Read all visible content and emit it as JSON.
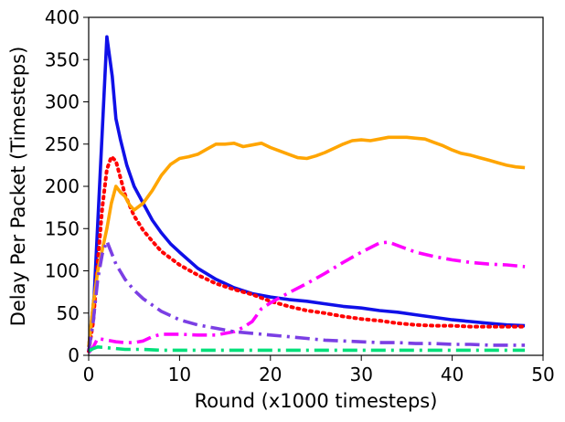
{
  "chart_data": {
    "type": "line",
    "title": "",
    "xlabel": "Round (x1000 timesteps)",
    "ylabel": "Delay Per Packet (Timesteps)",
    "xlim": [
      0,
      50
    ],
    "ylim": [
      0,
      400
    ],
    "xticks": [
      0,
      10,
      20,
      30,
      40,
      50
    ],
    "yticks": [
      0,
      50,
      100,
      150,
      200,
      250,
      300,
      350,
      400
    ],
    "xtick_labels": [
      "0",
      "10",
      "20",
      "30",
      "40",
      "50"
    ],
    "ytick_labels": [
      "0",
      "50",
      "100",
      "150",
      "200",
      "250",
      "300",
      "350",
      "400"
    ],
    "grid": false,
    "legend": "none",
    "series": [
      {
        "color": "#1010e8",
        "style": "solid",
        "x": [
          0,
          0.6,
          1.2,
          2,
          2.6,
          3,
          3.5,
          4.2,
          5,
          6,
          7,
          8,
          9,
          10,
          12,
          14,
          16,
          18,
          20,
          22,
          24,
          26,
          28,
          30,
          32,
          34,
          36,
          38,
          40,
          42,
          44,
          46,
          48
        ],
        "y": [
          10,
          70,
          200,
          377,
          330,
          280,
          255,
          225,
          200,
          180,
          160,
          145,
          132,
          122,
          103,
          90,
          80,
          73,
          69,
          66,
          64,
          61,
          58,
          56,
          53,
          51,
          48,
          45,
          42,
          40,
          38,
          36,
          35
        ]
      },
      {
        "color": "#ff0000",
        "style": "dotted",
        "x": [
          0,
          0.5,
          1,
          1.5,
          2,
          2.5,
          3,
          3.5,
          4,
          5,
          6,
          7,
          8,
          10,
          12,
          14,
          16,
          18,
          20,
          22,
          24,
          26,
          28,
          30,
          32,
          34,
          36,
          38,
          40,
          42,
          44,
          46,
          48
        ],
        "y": [
          5,
          40,
          110,
          175,
          220,
          235,
          230,
          210,
          190,
          165,
          148,
          135,
          123,
          107,
          95,
          85,
          78,
          72,
          64,
          58,
          53,
          50,
          46,
          43,
          41,
          38,
          36,
          35,
          35,
          34,
          34,
          34,
          34
        ]
      },
      {
        "color": "#ffa500",
        "style": "solid",
        "x": [
          0,
          0.5,
          1,
          2,
          2.5,
          3,
          3.5,
          4,
          4.5,
          5,
          6,
          7,
          8,
          9,
          10,
          11,
          12,
          13,
          14,
          15,
          16,
          17,
          18,
          19,
          20,
          21,
          22,
          23,
          24,
          25,
          26,
          27,
          28,
          29,
          30,
          31,
          32,
          33,
          34,
          35,
          36,
          37,
          38,
          39,
          40,
          41,
          42,
          43,
          44,
          45,
          46,
          47,
          48
        ],
        "y": [
          10,
          60,
          100,
          150,
          180,
          200,
          193,
          188,
          178,
          172,
          180,
          195,
          213,
          226,
          233,
          235,
          238,
          244,
          250,
          250,
          251,
          247,
          249,
          251,
          246,
          242,
          238,
          234,
          233,
          236,
          240,
          245,
          250,
          254,
          255,
          254,
          256,
          258,
          258,
          258,
          257,
          256,
          252,
          248,
          243,
          239,
          237,
          234,
          231,
          228,
          225,
          223,
          222
        ]
      },
      {
        "color": "#ff00ff",
        "style": "dashdot",
        "x": [
          0,
          0.5,
          1,
          2,
          3,
          4,
          5,
          6,
          7,
          8,
          10,
          12,
          14,
          16,
          17,
          18,
          19,
          20,
          21,
          22,
          24,
          26,
          28,
          30,
          32,
          33,
          34,
          36,
          38,
          40,
          42,
          44,
          46,
          48
        ],
        "y": [
          3,
          10,
          20,
          18,
          16,
          15,
          15,
          17,
          22,
          25,
          25,
          24,
          24,
          28,
          33,
          40,
          55,
          62,
          68,
          74,
          85,
          97,
          110,
          122,
          133,
          134,
          130,
          122,
          117,
          113,
          110,
          108,
          107,
          105
        ]
      },
      {
        "color": "#7b3fe4",
        "style": "dashdot",
        "x": [
          0,
          0.5,
          1,
          1.5,
          2,
          3,
          4,
          5,
          6,
          8,
          10,
          12,
          14,
          16,
          18,
          20,
          22,
          24,
          26,
          28,
          30,
          32,
          34,
          36,
          38,
          40,
          42,
          44,
          46,
          48
        ],
        "y": [
          5,
          40,
          90,
          120,
          135,
          108,
          90,
          77,
          67,
          52,
          42,
          36,
          32,
          28,
          26,
          24,
          22,
          20,
          18,
          17,
          16,
          15,
          15,
          14,
          14,
          13,
          13,
          12,
          12,
          12
        ]
      },
      {
        "color": "#00e07a",
        "style": "dashdot",
        "x": [
          0,
          0.5,
          1,
          2,
          3,
          4,
          5,
          6,
          8,
          10,
          12,
          14,
          16,
          18,
          20,
          22,
          24,
          26,
          28,
          30,
          32,
          34,
          36,
          38,
          40,
          42,
          44,
          46,
          48
        ],
        "y": [
          5,
          8,
          10,
          9,
          8,
          7,
          7,
          7,
          6,
          6,
          6,
          6,
          6,
          6,
          6,
          6,
          6,
          6,
          6,
          6,
          6,
          6,
          6,
          6,
          6,
          6,
          6,
          6,
          6
        ]
      }
    ]
  }
}
